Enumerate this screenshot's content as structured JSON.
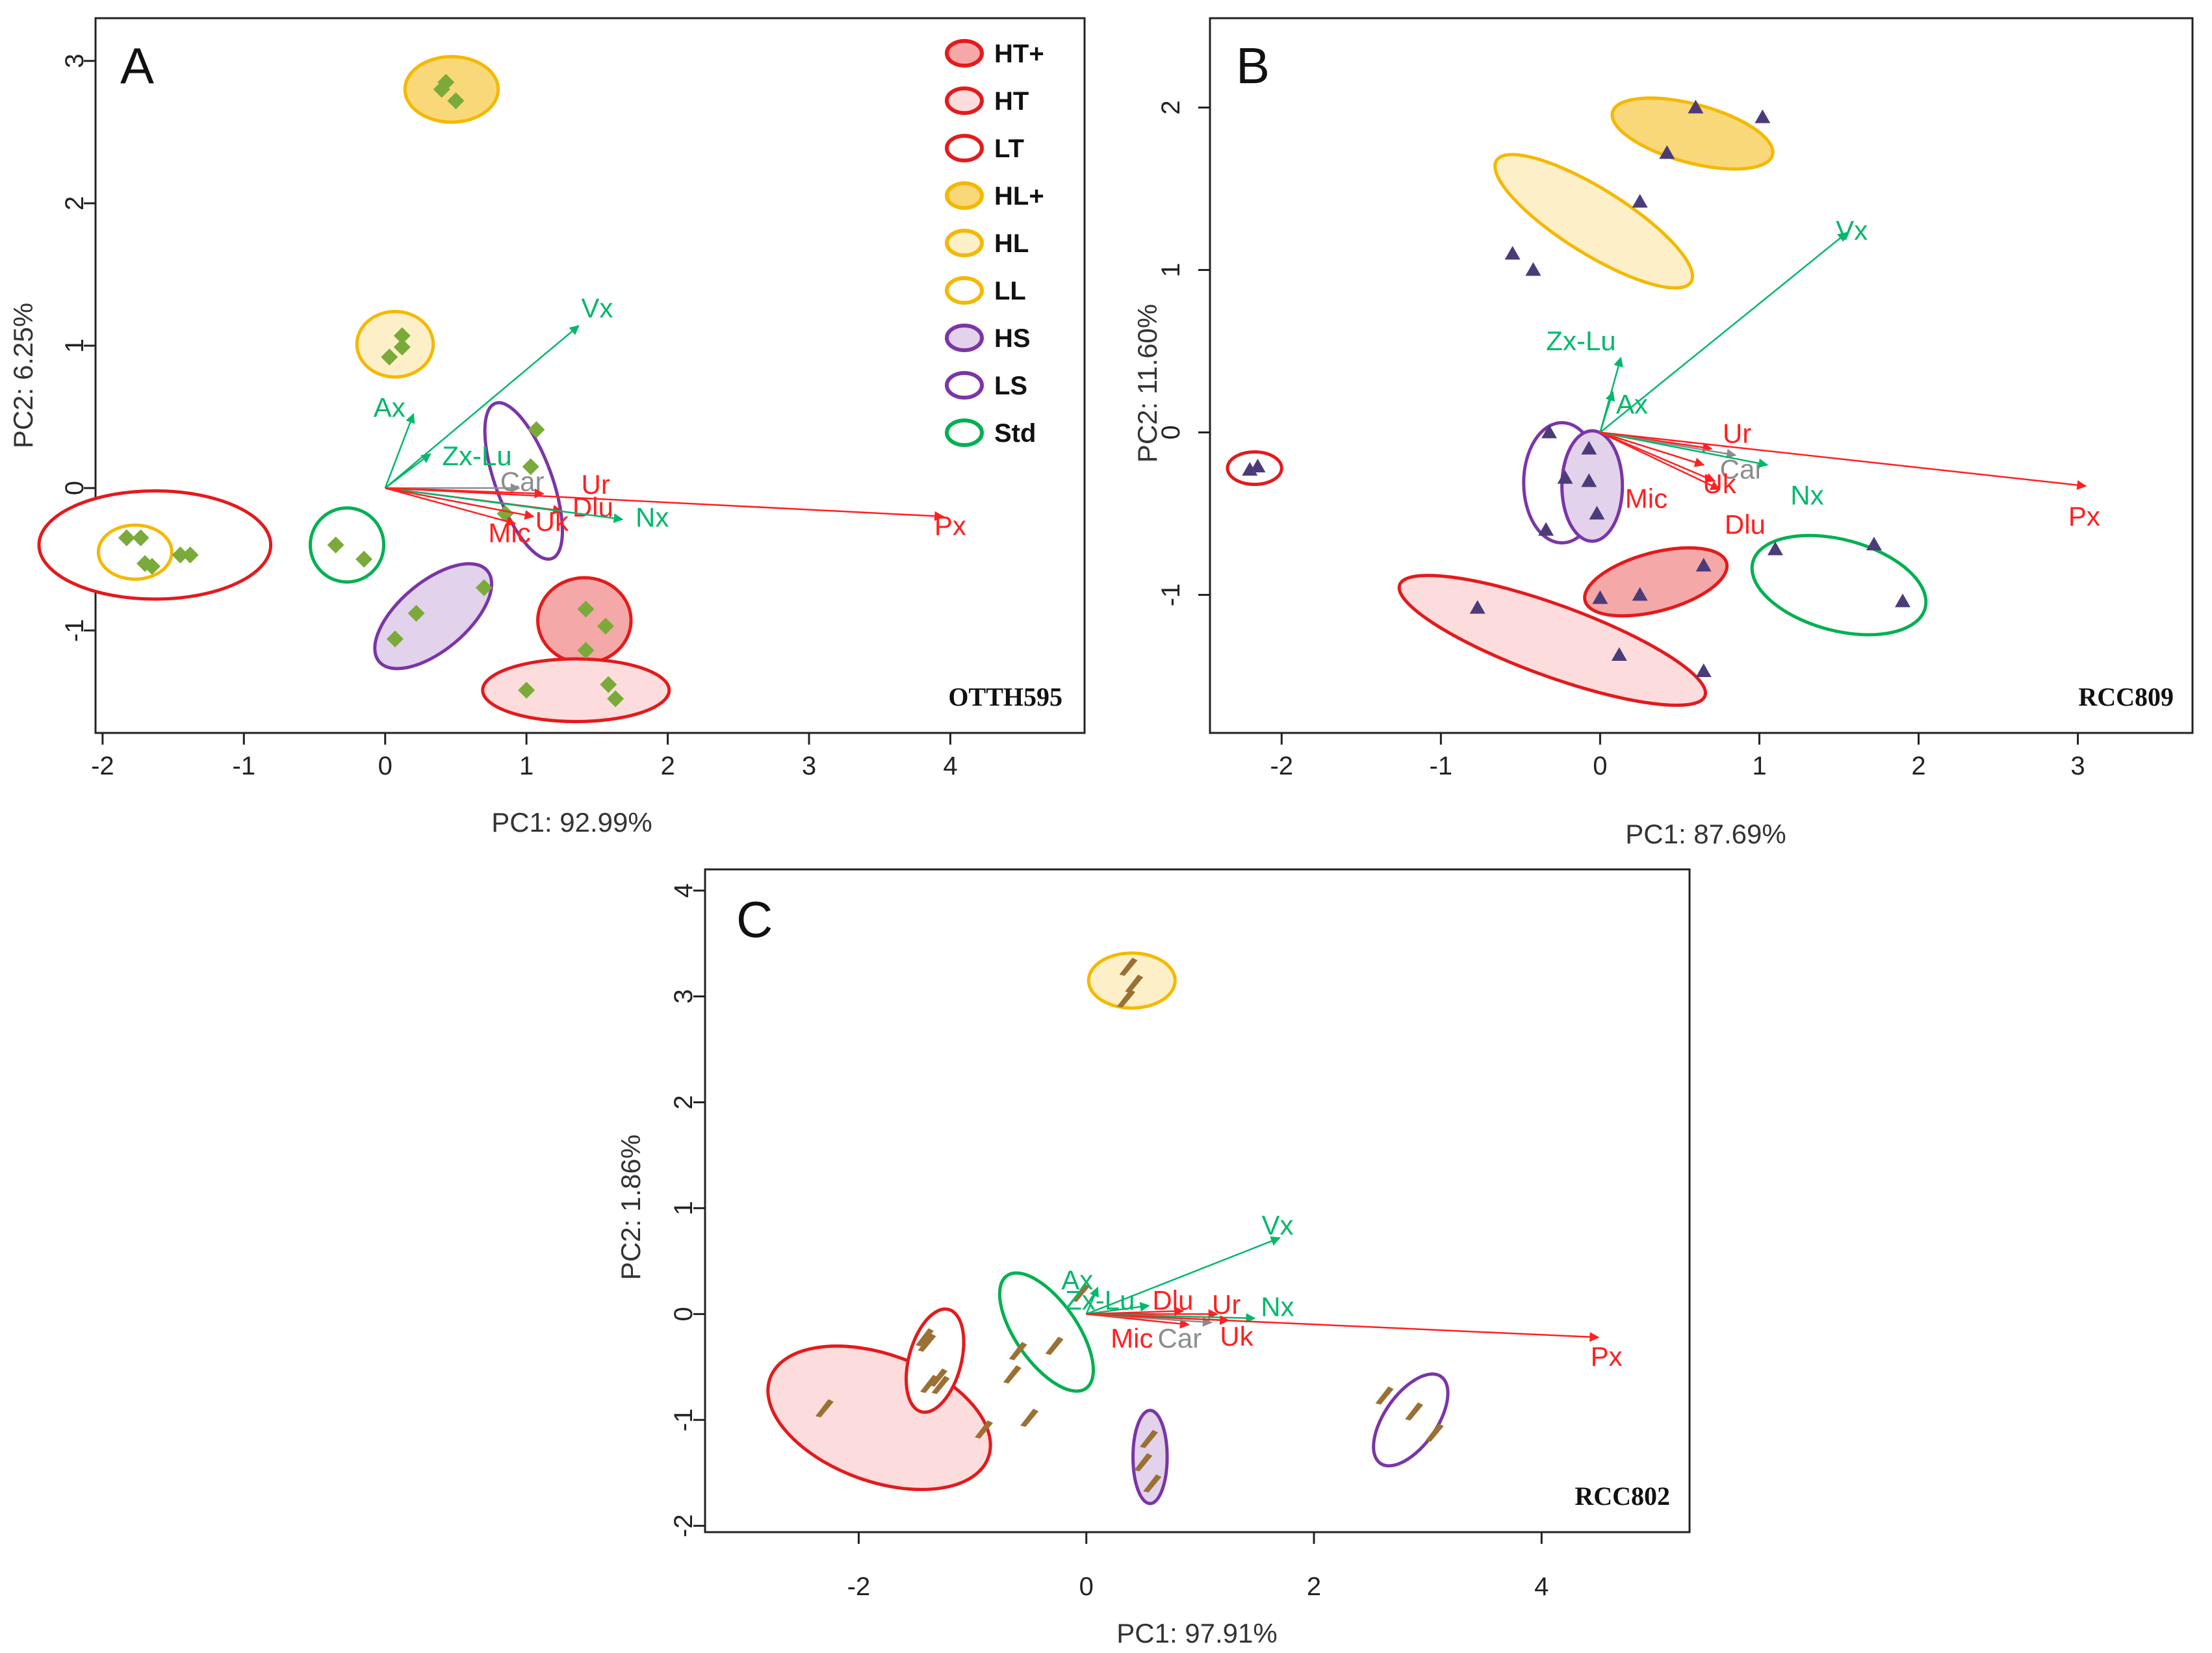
{
  "legend": [
    {
      "label": "HT+",
      "stroke": "#e41a1c",
      "fill": "#f4a8a8"
    },
    {
      "label": "HT",
      "stroke": "#e41a1c",
      "fill": "#fcdcdc"
    },
    {
      "label": "LT",
      "stroke": "#e41a1c",
      "fill": "#ffffff"
    },
    {
      "label": "HL+",
      "stroke": "#f5b800",
      "fill": "#f8d878"
    },
    {
      "label": "HL",
      "stroke": "#f5b800",
      "fill": "#fdf0c8"
    },
    {
      "label": "LL",
      "stroke": "#f5b800",
      "fill": "#ffffff"
    },
    {
      "label": "HS",
      "stroke": "#7b35a6",
      "fill": "#e2d2ec"
    },
    {
      "label": "LS",
      "stroke": "#7b35a6",
      "fill": "#ffffff"
    },
    {
      "label": "Std",
      "stroke": "#00b050",
      "fill": "#ffffff"
    }
  ],
  "colors": {
    "red": "#ff2020",
    "green": "#00b86b",
    "gray": "#8c8c8c",
    "diamond": "#7aab3a",
    "triangle": "#4b3b78",
    "leaf": "#9a7033"
  },
  "chart_data": [
    {
      "type": "scatter",
      "panel": "A",
      "strain": "OTTH595",
      "xlabel": "PC1: 92.99%",
      "ylabel": "PC2: 6.25%",
      "xlim": [
        -2.05,
        4.95
      ],
      "ylim": [
        -1.72,
        3.3
      ],
      "xticks": [
        -2,
        -1,
        0,
        1,
        2,
        3,
        4
      ],
      "yticks": [
        -1,
        0,
        1,
        2,
        3
      ],
      "marker": "diamond",
      "groups": [
        {
          "label": "LT",
          "ellipse": [
            -1.63,
            -0.4,
            0.82,
            0.38,
            0
          ],
          "points": [
            [
              -1.83,
              -0.35
            ],
            [
              -1.73,
              -0.35
            ],
            [
              -1.7,
              -0.53
            ],
            [
              -1.65,
              -0.55
            ],
            [
              -1.45,
              -0.47
            ],
            [
              -1.38,
              -0.47
            ]
          ]
        },
        {
          "label": "LL",
          "ellipse": [
            -1.77,
            -0.45,
            0.26,
            0.19,
            0
          ],
          "points": []
        },
        {
          "label": "Std",
          "ellipse": [
            -0.27,
            -0.4,
            0.26,
            0.26,
            0
          ],
          "points": [
            [
              -0.35,
              -0.4
            ],
            [
              -0.15,
              -0.5
            ]
          ]
        },
        {
          "label": "HL",
          "ellipse": [
            0.07,
            1.01,
            0.27,
            0.23,
            0
          ],
          "points": [
            [
              0.12,
              1.07
            ],
            [
              0.12,
              0.99
            ],
            [
              0.03,
              0.92
            ]
          ]
        },
        {
          "label": "HL+",
          "ellipse": [
            0.47,
            2.8,
            0.33,
            0.23,
            0
          ],
          "points": [
            [
              0.4,
              2.8
            ],
            [
              0.43,
              2.85
            ],
            [
              0.5,
              2.72
            ]
          ]
        },
        {
          "label": "LS",
          "ellipse": [
            0.98,
            0.05,
            0.2,
            0.58,
            20
          ],
          "points": [
            [
              1.07,
              0.41
            ],
            [
              1.03,
              0.15
            ],
            [
              0.85,
              -0.18
            ]
          ]
        },
        {
          "label": "HS",
          "ellipse": [
            0.34,
            -0.9,
            0.5,
            0.24,
            40
          ],
          "points": [
            [
              0.7,
              -0.7
            ],
            [
              0.22,
              -0.88
            ],
            [
              0.07,
              -1.06
            ]
          ]
        },
        {
          "label": "HT+",
          "ellipse": [
            1.41,
            -0.93,
            0.33,
            0.3,
            0
          ],
          "points": [
            [
              1.42,
              -0.85
            ],
            [
              1.56,
              -0.97
            ],
            [
              1.42,
              -1.14
            ]
          ]
        },
        {
          "label": "HT",
          "ellipse": [
            1.35,
            -1.42,
            0.66,
            0.22,
            0
          ],
          "points": [
            [
              1.0,
              -1.42
            ],
            [
              1.58,
              -1.38
            ],
            [
              1.63,
              -1.48
            ]
          ]
        }
      ],
      "vectors": [
        {
          "label": "Vx",
          "x": 1.37,
          "y": 1.14,
          "color": "green",
          "lx": 1.5,
          "ly": 1.25
        },
        {
          "label": "Ax",
          "x": 0.2,
          "y": 0.52,
          "color": "green",
          "lx": 0.03,
          "ly": 0.55
        },
        {
          "label": "Zx-Lu",
          "x": 0.32,
          "y": 0.24,
          "color": "green",
          "lx": 0.65,
          "ly": 0.21
        },
        {
          "label": "Car",
          "x": 0.95,
          "y": 0.0,
          "color": "gray",
          "lx": 0.97,
          "ly": 0.03
        },
        {
          "label": "Ur",
          "x": 1.12,
          "y": -0.04,
          "color": "red",
          "lx": 1.49,
          "ly": 0.01
        },
        {
          "label": "Dlu",
          "x": 1.25,
          "y": -0.16,
          "color": "red",
          "lx": 1.47,
          "ly": -0.15
        },
        {
          "label": "Nx",
          "x": 1.68,
          "y": -0.22,
          "color": "green",
          "lx": 1.89,
          "ly": -0.22
        },
        {
          "label": "Uk",
          "x": 1.05,
          "y": -0.2,
          "color": "red",
          "lx": 1.18,
          "ly": -0.25
        },
        {
          "label": "Mic",
          "x": 0.92,
          "y": -0.25,
          "color": "red",
          "lx": 0.88,
          "ly": -0.33
        },
        {
          "label": "Px",
          "x": 3.95,
          "y": -0.2,
          "color": "red",
          "lx": 4.0,
          "ly": -0.28
        }
      ]
    },
    {
      "type": "scatter",
      "panel": "B",
      "strain": "RCC809",
      "xlabel": "PC1: 87.69%",
      "ylabel": "PC2: 11.60%",
      "xlim": [
        -2.45,
        3.72
      ],
      "ylim": [
        -1.85,
        2.55
      ],
      "xticks": [
        -2,
        -1,
        0,
        1,
        2,
        3
      ],
      "yticks": [
        -1,
        0,
        1,
        2
      ],
      "marker": "triangle",
      "groups": [
        {
          "label": "LT",
          "ellipse": [
            -2.17,
            -0.22,
            0.17,
            0.1,
            0
          ],
          "points": [
            [
              -2.2,
              -0.23
            ],
            [
              -2.15,
              -0.21
            ]
          ]
        },
        {
          "label": "HL+",
          "ellipse": [
            0.58,
            1.84,
            0.52,
            0.18,
            -15
          ],
          "points": [
            [
              0.6,
              2.0
            ],
            [
              1.02,
              1.94
            ],
            [
              0.42,
              1.72
            ]
          ]
        },
        {
          "label": "HL",
          "ellipse": [
            -0.04,
            1.3,
            0.72,
            0.2,
            -32
          ],
          "points": [
            [
              0.25,
              1.42
            ],
            [
              -0.55,
              1.1
            ],
            [
              -0.42,
              1.0
            ]
          ]
        },
        {
          "label": "LS",
          "ellipse": [
            -0.24,
            -0.31,
            0.24,
            0.37,
            0
          ],
          "points": [
            [
              -0.32,
              0.0
            ],
            [
              -0.22,
              -0.28
            ],
            [
              -0.34,
              -0.6
            ]
          ]
        },
        {
          "label": "HS",
          "ellipse": [
            -0.05,
            -0.33,
            0.19,
            0.34,
            0
          ],
          "points": [
            [
              -0.07,
              -0.1
            ],
            [
              -0.07,
              -0.3
            ],
            [
              -0.02,
              -0.5
            ]
          ]
        },
        {
          "label": "HT+",
          "ellipse": [
            0.35,
            -0.92,
            0.46,
            0.18,
            15
          ],
          "points": [
            [
              0.65,
              -0.82
            ],
            [
              0.25,
              -1.0
            ],
            [
              0.0,
              -1.02
            ]
          ]
        },
        {
          "label": "HT",
          "ellipse": [
            -0.3,
            -1.28,
            1.02,
            0.22,
            -20
          ],
          "points": [
            [
              -0.77,
              -1.08
            ],
            [
              0.12,
              -1.37
            ],
            [
              0.65,
              -1.47
            ]
          ]
        },
        {
          "label": "Std",
          "ellipse": [
            1.5,
            -0.94,
            0.56,
            0.28,
            -15
          ],
          "points": [
            [
              1.1,
              -0.72
            ],
            [
              1.72,
              -0.69
            ],
            [
              1.9,
              -1.04
            ]
          ]
        }
      ],
      "vectors": [
        {
          "label": "Vx",
          "x": 1.55,
          "y": 1.23,
          "color": "green",
          "lx": 1.58,
          "ly": 1.23
        },
        {
          "label": "Zx-Lu",
          "x": 0.13,
          "y": 0.46,
          "color": "green",
          "lx": -0.12,
          "ly": 0.55
        },
        {
          "label": "Ax",
          "x": 0.08,
          "y": 0.25,
          "color": "green",
          "lx": 0.2,
          "ly": 0.16
        },
        {
          "label": "Ur",
          "x": 0.7,
          "y": -0.1,
          "color": "red",
          "lx": 0.86,
          "ly": -0.02
        },
        {
          "label": "Car",
          "x": 0.85,
          "y": -0.14,
          "color": "gray",
          "lx": 0.89,
          "ly": -0.24
        },
        {
          "label": "Uk",
          "x": 0.65,
          "y": -0.2,
          "color": "red",
          "lx": 0.75,
          "ly": -0.33
        },
        {
          "label": "Nx",
          "x": 1.05,
          "y": -0.2,
          "color": "green",
          "lx": 1.3,
          "ly": -0.4
        },
        {
          "label": "Mic",
          "x": 0.72,
          "y": -0.3,
          "color": "red",
          "lx": 0.29,
          "ly": -0.42
        },
        {
          "label": "Dlu",
          "x": 0.75,
          "y": -0.35,
          "color": "red",
          "lx": 0.91,
          "ly": -0.58
        },
        {
          "label": "Px",
          "x": 3.05,
          "y": -0.33,
          "color": "red",
          "lx": 3.04,
          "ly": -0.53
        }
      ]
    },
    {
      "type": "scatter",
      "panel": "C",
      "strain": "RCC802",
      "xlabel": "PC1: 97.91%",
      "ylabel": "PC2: 1.86%",
      "xlim": [
        -3.35,
        5.3
      ],
      "ylim": [
        -2.06,
        4.2
      ],
      "xticks": [
        -2,
        0,
        2,
        4
      ],
      "yticks": [
        -2,
        -1,
        0,
        1,
        2,
        3,
        4
      ],
      "marker": "leaf",
      "groups": [
        {
          "label": "HL",
          "ellipse": [
            0.4,
            3.15,
            0.38,
            0.26,
            0
          ],
          "points": [
            [
              0.37,
              3.28
            ],
            [
              0.42,
              3.12
            ],
            [
              0.35,
              2.98
            ]
          ]
        },
        {
          "label": "HT",
          "ellipse": [
            -1.82,
            -0.98,
            1.02,
            0.6,
            -20
          ],
          "points": [
            [
              -2.3,
              -0.89
            ],
            [
              -0.9,
              -1.09
            ],
            [
              -0.5,
              -0.98
            ],
            [
              -1.38,
              -0.66
            ]
          ]
        },
        {
          "label": "LT",
          "ellipse": [
            -1.33,
            -0.44,
            0.23,
            0.5,
            -15
          ],
          "points": [
            [
              -1.42,
              -0.22
            ],
            [
              -1.4,
              -0.27
            ],
            [
              -1.3,
              -0.6
            ],
            [
              -1.28,
              -0.67
            ]
          ]
        },
        {
          "label": "Std",
          "ellipse": [
            -0.35,
            -0.17,
            0.27,
            0.65,
            35
          ],
          "points": [
            [
              -0.28,
              -0.3
            ],
            [
              -0.6,
              -0.35
            ],
            [
              -0.65,
              -0.57
            ],
            [
              -0.05,
              0.2
            ]
          ]
        },
        {
          "label": "HS",
          "ellipse": [
            0.56,
            -1.35,
            0.15,
            0.44,
            0
          ],
          "points": [
            [
              0.55,
              -1.18
            ],
            [
              0.5,
              -1.4
            ],
            [
              0.58,
              -1.6
            ]
          ]
        },
        {
          "label": "LS",
          "ellipse": [
            2.85,
            -1.0,
            0.23,
            0.5,
            -35
          ],
          "points": [
            [
              2.62,
              -0.77
            ],
            [
              2.88,
              -0.92
            ],
            [
              3.06,
              -1.12
            ]
          ]
        }
      ],
      "vectors": [
        {
          "label": "Vx",
          "x": 1.7,
          "y": 0.72,
          "color": "green",
          "lx": 1.68,
          "ly": 0.82
        },
        {
          "label": "Ax",
          "x": 0.1,
          "y": 0.25,
          "color": "green",
          "lx": -0.08,
          "ly": 0.3
        },
        {
          "label": "Zx-Lu",
          "x": 0.55,
          "y": 0.08,
          "color": "green",
          "lx": 0.12,
          "ly": 0.11
        },
        {
          "label": "Dlu",
          "x": 0.85,
          "y": 0.03,
          "color": "red",
          "lx": 0.76,
          "ly": 0.11
        },
        {
          "label": "Ur",
          "x": 1.15,
          "y": 0.0,
          "color": "red",
          "lx": 1.23,
          "ly": 0.07
        },
        {
          "label": "Nx",
          "x": 1.48,
          "y": -0.04,
          "color": "green",
          "lx": 1.68,
          "ly": 0.05
        },
        {
          "label": "Mic",
          "x": 0.9,
          "y": -0.1,
          "color": "red",
          "lx": 0.4,
          "ly": -0.25
        },
        {
          "label": "Car",
          "x": 1.1,
          "y": -0.08,
          "color": "gray",
          "lx": 0.82,
          "ly": -0.25
        },
        {
          "label": "Uk",
          "x": 1.25,
          "y": -0.06,
          "color": "red",
          "lx": 1.32,
          "ly": -0.23
        },
        {
          "label": "Px",
          "x": 4.5,
          "y": -0.22,
          "color": "red",
          "lx": 4.57,
          "ly": -0.42
        }
      ]
    }
  ]
}
